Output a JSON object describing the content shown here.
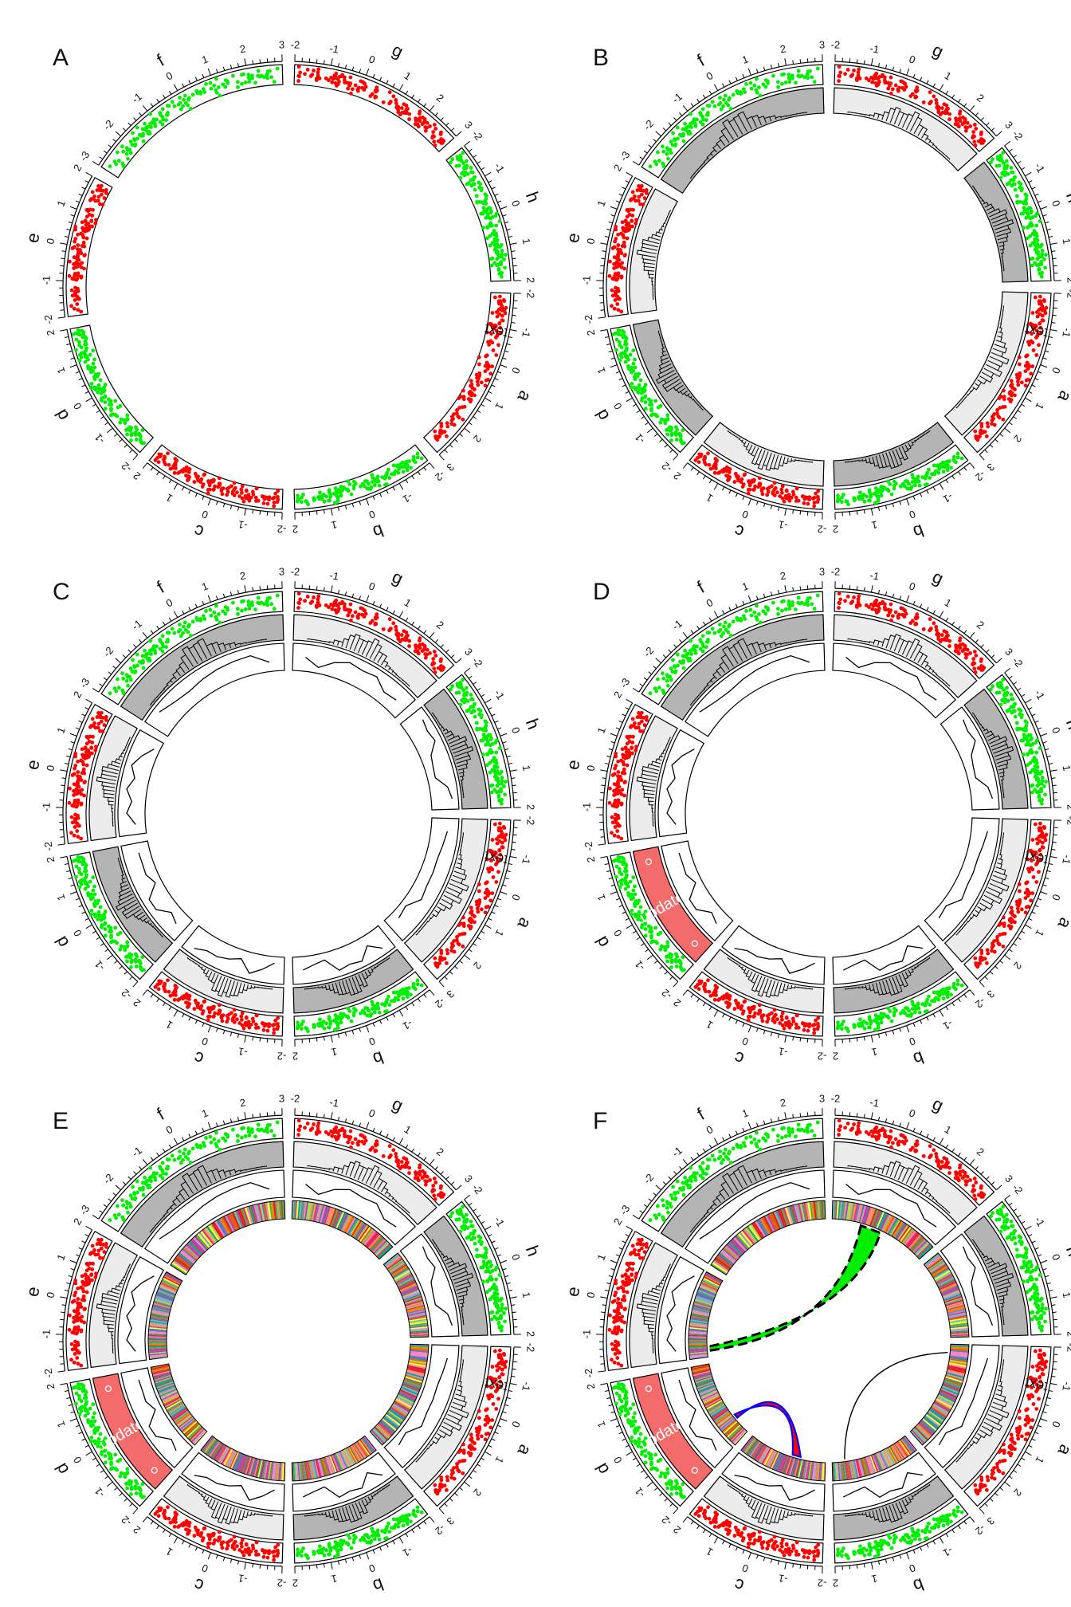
{
  "chart_data": {
    "type": "circos",
    "panels": [
      "A",
      "B",
      "C",
      "D",
      "E",
      "F"
    ],
    "sectors": [
      "a",
      "b",
      "c",
      "d",
      "e",
      "f",
      "g",
      "h"
    ],
    "sector_order_clockwise_from_top": [
      "g",
      "h",
      "a",
      "b",
      "c",
      "d",
      "e",
      "f"
    ],
    "sector_x_ranges": {
      "a": [
        -2,
        3
      ],
      "b": [
        -2,
        2
      ],
      "c": [
        -2,
        2
      ],
      "d": [
        -2,
        2
      ],
      "e": [
        -2,
        2
      ],
      "f": [
        -3,
        3
      ],
      "g": [
        -2,
        3
      ],
      "h": [
        -2,
        2
      ]
    },
    "axis_tick_labels": {
      "a": [
        "-2",
        "-1",
        "0",
        "1",
        "2",
        "3"
      ],
      "b": [
        "-2",
        "-1",
        "0",
        "1",
        "2"
      ],
      "c": [
        "-2",
        "-1",
        "0",
        "1",
        "2"
      ],
      "d": [
        "-2",
        "-1",
        "0",
        "1",
        "2"
      ],
      "e": [
        "-2",
        "-1",
        "0",
        "1",
        "2"
      ],
      "f": [
        "-3",
        "-2",
        "-1",
        "0",
        "1",
        "2",
        "3"
      ],
      "g": [
        "-2",
        "-1",
        "0",
        "1",
        "2",
        "3"
      ],
      "h": [
        "-2",
        "-1",
        "0",
        "1",
        "2"
      ]
    },
    "scatter_track_colors": {
      "a": "#ff0000",
      "b": "#00ee00",
      "c": "#ff0000",
      "d": "#00ee00",
      "e": "#ff0000",
      "f": "#00ee00",
      "g": "#ff0000",
      "h": "#00ee00"
    },
    "histogram_track_fill": {
      "a": "#ececec",
      "b": "#b4b4b4",
      "c": "#ececec",
      "d": "#b4b4b4",
      "e": "#ececec",
      "f": "#b4b4b4",
      "g": "#ececec",
      "h": "#b4b4b4"
    },
    "histogram_track_fill_panels_DEF": {
      "a": "#ececec",
      "b": "#b4b4b4",
      "c": "#ececec",
      "d": "#ececec",
      "e": "#ececec",
      "f": "#b4b4b4",
      "g": "#ececec",
      "h": "#b4b4b4"
    },
    "panel_tracks": {
      "A": [
        "scatter"
      ],
      "B": [
        "scatter",
        "histogram"
      ],
      "C": [
        "scatter",
        "histogram",
        "line"
      ],
      "D": [
        "scatter",
        "histogram",
        "line"
      ],
      "E": [
        "scatter",
        "histogram",
        "line",
        "heatmap"
      ],
      "F": [
        "scatter",
        "histogram",
        "line",
        "heatmap",
        "links"
      ]
    },
    "annotations": {
      "text_in_sector_a": "text",
      "updated_label": "updated",
      "updated_color": "#f46b6b"
    },
    "links_panel_F": [
      {
        "type": "ribbon",
        "fill": "#00ee00",
        "border": "#000000",
        "dashed": true
      },
      {
        "type": "ribbon",
        "fill": "#ff0000",
        "border": "#0000ff",
        "dashed": false
      },
      {
        "type": "line",
        "color": "#000000",
        "dashed": false
      }
    ]
  }
}
